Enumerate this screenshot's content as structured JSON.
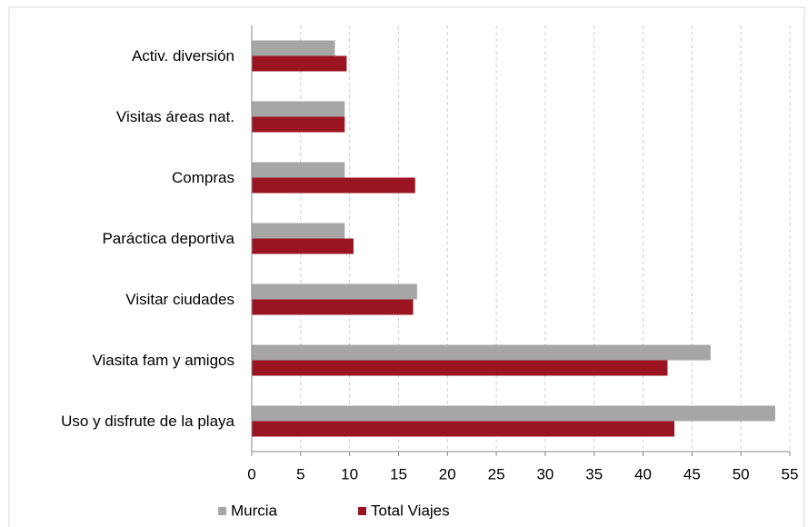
{
  "chart_data": {
    "type": "hbar",
    "categories": [
      "Activ. diversión",
      "Visitas áreas nat.",
      "Compras",
      "Paráctica deportiva",
      "Visitar ciudades",
      "Viasita fam y amigos",
      "Uso y disfrute de la playa"
    ],
    "series": [
      {
        "name": "Murcia",
        "color": "#a6a6a6",
        "values": [
          8.5,
          9.5,
          9.5,
          9.5,
          16.9,
          46.9,
          53.5
        ]
      },
      {
        "name": "Total Viajes",
        "color": "#9b1422",
        "values": [
          9.7,
          9.5,
          16.7,
          10.4,
          16.5,
          42.5,
          43.2
        ]
      }
    ],
    "xlim": [
      0,
      55
    ],
    "xticks": [
      0,
      5,
      10,
      15,
      20,
      25,
      30,
      35,
      40,
      45,
      50,
      55
    ],
    "grid": true,
    "legend": "bottom"
  }
}
